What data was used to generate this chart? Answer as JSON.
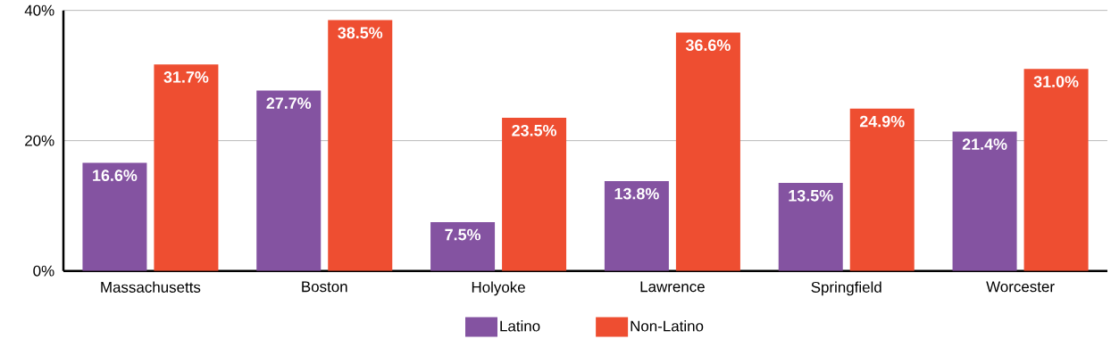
{
  "chart_data": {
    "type": "bar",
    "categories": [
      "Massachusetts",
      "Boston",
      "Holyoke",
      "Lawrence",
      "Springfield",
      "Worcester"
    ],
    "series": [
      {
        "name": "Latino",
        "color": "#8453a1",
        "values": [
          16.6,
          27.7,
          7.5,
          13.8,
          13.5,
          21.4
        ],
        "value_labels": [
          "16.6%",
          "27.7%",
          "7.5%",
          "13.8%",
          "13.5%",
          "21.4%"
        ]
      },
      {
        "name": "Non-Latino",
        "color": "#ee4e31",
        "values": [
          31.7,
          38.5,
          23.5,
          36.6,
          24.9,
          31.0
        ],
        "value_labels": [
          "31.7%",
          "38.5%",
          "23.5%",
          "36.6%",
          "24.9%",
          "31.0%"
        ]
      }
    ],
    "ylim": [
      0,
      40
    ],
    "yticks": [
      {
        "value": 0,
        "label": "0%"
      },
      {
        "value": 20,
        "label": "20%"
      },
      {
        "value": 40,
        "label": "40%"
      }
    ],
    "grid": "y",
    "legend": "bottom"
  }
}
